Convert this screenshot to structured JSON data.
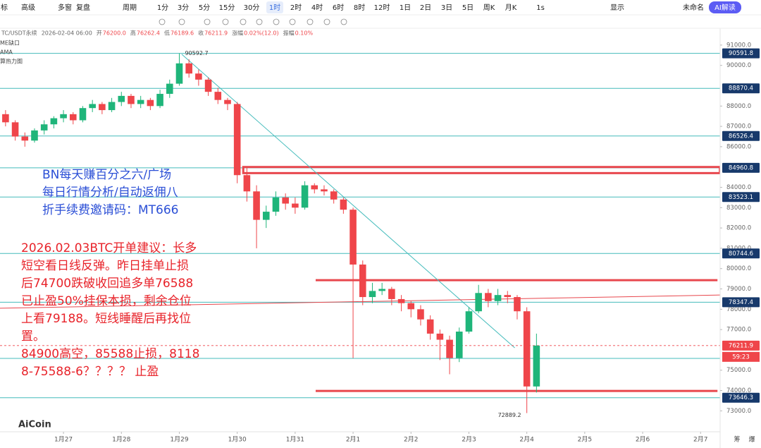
{
  "toolbar": {
    "left": [
      "标",
      "高级",
      "多窗",
      "复盘",
      "周期"
    ],
    "periods": [
      "1分",
      "3分",
      "5分",
      "15分",
      "30分",
      "1时",
      "2时",
      "4时",
      "6时",
      "8时",
      "12时",
      "1日",
      "2日",
      "3日",
      "5日",
      "周K",
      "月K"
    ],
    "active_period": 5,
    "right": [
      "1s",
      "显示",
      "未命名",
      "AI解读"
    ]
  },
  "infobar": [
    "TC/USDT永续",
    "2026-02-04 06:00",
    "开",
    "76200.0",
    "高",
    "76262.4",
    "低",
    "76189.6",
    "收",
    "76211.9",
    "涨幅",
    "0.02%(12.0)",
    "振幅",
    "0.10%"
  ],
  "indicators": [
    "ME缺口",
    "AMA",
    "算热力图"
  ],
  "watermark": "AiCoin",
  "footer_right": [
    "筹",
    "爆"
  ],
  "chart_data": {
    "type": "candlestick",
    "up_color": "#1fb57a",
    "down_color": "#ef454a",
    "x": [
      -24,
      -20,
      -16,
      -12,
      -8,
      -4,
      0,
      4,
      8,
      12,
      16,
      20,
      24,
      28,
      32,
      36,
      40,
      44,
      48,
      52,
      56,
      60,
      64,
      68,
      72,
      76,
      80,
      84,
      88,
      92,
      96,
      100,
      104,
      108,
      112,
      116,
      120,
      124,
      128,
      132,
      136,
      140,
      144,
      148,
      152,
      156,
      160,
      164,
      168,
      172,
      176,
      180,
      184,
      188,
      192,
      196
    ],
    "open": [
      87600,
      87200,
      86500,
      86300,
      86800,
      87100,
      87400,
      87600,
      87300,
      87900,
      88100,
      87800,
      88200,
      88500,
      88100,
      88300,
      88000,
      88600,
      89100,
      90100,
      89600,
      89300,
      88700,
      88300,
      88100,
      84600,
      83800,
      82400,
      82800,
      83500,
      83200,
      83000,
      84100,
      83900,
      83800,
      83400,
      82900,
      80200,
      78600,
      78900,
      79000,
      78500,
      78300,
      78000,
      77500,
      76800,
      76500,
      75600,
      76900,
      77900,
      78800,
      78400,
      78700,
      78600,
      77900,
      74200
    ],
    "high": [
      87800,
      87300,
      86700,
      86900,
      87300,
      87500,
      87800,
      87700,
      88000,
      88300,
      88200,
      88400,
      88700,
      88600,
      88500,
      88400,
      88800,
      89300,
      90592.7,
      90300,
      89800,
      89400,
      88900,
      88400,
      88200,
      85000,
      84100,
      83100,
      83800,
      83700,
      83500,
      84300,
      84200,
      84100,
      83900,
      83500,
      83000,
      80400,
      79300,
      79300,
      79100,
      78700,
      78400,
      78200,
      77700,
      77000,
      76700,
      77100,
      78100,
      79200,
      79000,
      79000,
      78900,
      78700,
      78100,
      76800
    ],
    "low": [
      87000,
      86300,
      86000,
      86200,
      86600,
      86900,
      87200,
      87100,
      87200,
      87700,
      87600,
      87700,
      88000,
      87900,
      87900,
      87800,
      87900,
      88400,
      89000,
      89400,
      89000,
      88500,
      88100,
      87800,
      84200,
      83300,
      81000,
      82000,
      82600,
      82900,
      82700,
      82900,
      83700,
      83600,
      83200,
      82700,
      75600,
      78200,
      78300,
      78700,
      78200,
      77900,
      77600,
      77200,
      76500,
      75500,
      74800,
      75400,
      76800,
      77800,
      78100,
      78200,
      78300,
      77500,
      72889.2,
      73900
    ],
    "close": [
      87200,
      86500,
      86300,
      86800,
      87100,
      87400,
      87600,
      87300,
      87900,
      88100,
      87800,
      88200,
      88500,
      88100,
      88300,
      88000,
      88600,
      89100,
      90100,
      89600,
      89300,
      88700,
      88300,
      88100,
      84600,
      83800,
      82400,
      82800,
      83500,
      83200,
      83000,
      84100,
      83900,
      83800,
      83400,
      82900,
      80200,
      78600,
      78900,
      79000,
      78500,
      78300,
      78000,
      77500,
      76800,
      76500,
      75600,
      76900,
      77900,
      78800,
      78400,
      78700,
      78600,
      77900,
      74200,
      76211.9
    ],
    "xlim": [
      -26.3,
      272.1
    ],
    "ylim": [
      71970,
      91830
    ],
    "xticks": [
      {
        "value": 0,
        "label": "1月27"
      },
      {
        "value": 24,
        "label": "1月28"
      },
      {
        "value": 48,
        "label": "1月29"
      },
      {
        "value": 72,
        "label": "1月30"
      },
      {
        "value": 96,
        "label": "1月31"
      },
      {
        "value": 120,
        "label": "2月1"
      },
      {
        "value": 144,
        "label": "2月2"
      },
      {
        "value": 168,
        "label": "2月3"
      },
      {
        "value": 192,
        "label": "2月4"
      },
      {
        "value": 216,
        "label": "2月5"
      },
      {
        "value": 240,
        "label": "2月6"
      },
      {
        "value": 264,
        "label": "2月7"
      }
    ],
    "yticks": [
      {
        "value": 91000,
        "label": "91000.0"
      },
      {
        "value": 90000,
        "label": "90000.0"
      },
      {
        "value": 88000,
        "label": "88000.0"
      },
      {
        "value": 87000,
        "label": "87000.0"
      },
      {
        "value": 86000,
        "label": "86000.0"
      },
      {
        "value": 84000,
        "label": "84000.0"
      },
      {
        "value": 83000,
        "label": "83000.0"
      },
      {
        "value": 82000,
        "label": "82000.0"
      },
      {
        "value": 81000,
        "label": "81000.0"
      },
      {
        "value": 80000,
        "label": "80000.0"
      },
      {
        "value": 79000,
        "label": "79000.0"
      },
      {
        "value": 78000,
        "label": "78000.0"
      },
      {
        "value": 77000,
        "label": "77000.0"
      },
      {
        "value": 75000,
        "label": "75000.0"
      },
      {
        "value": 74000,
        "label": "74000.0"
      },
      {
        "value": 73000,
        "label": "73000.0"
      }
    ],
    "levels": [
      90591.8,
      88870.4,
      86526.4,
      84960.8,
      83523.1,
      80744.6,
      78347.4,
      73646.3
    ],
    "level_color": "#45bcbc",
    "countdown": "59:23",
    "plain_lines": [
      75580
    ],
    "trend_lines": [
      {
        "color": "#45bcbc",
        "points": [
          [
            49,
            90550
          ],
          [
            187,
            76100
          ]
        ]
      },
      {
        "color": "#e8474d",
        "points": [
          [
            -26.3,
            78050
          ],
          [
            272.1,
            78700
          ]
        ]
      }
    ],
    "red_segments": [
      {
        "x": [
          104.5,
          271
        ],
        "y": 79430
      },
      {
        "x": [
          104.5,
          271
        ],
        "y": 73980
      }
    ],
    "red_box": {
      "x": [
        74.5,
        272
      ],
      "y": [
        84700,
        85000
      ]
    },
    "blue_note": [
      "BN每天赚百分之六/广场",
      "每日行情分析/自动返佣八",
      "折手续费邀请码：MT666"
    ],
    "red_note": [
      "2026.02.03BTC开单建议：长多",
      "短空看日线反弹。昨日挂单止损",
      "后74700跌破收回追多单76588",
      "已止盈50%挂保本损，剩余仓位",
      "上看79188。短线睡醒后再找位",
      "置。",
      "84900高空，85588止损，8118",
      "8-75588-6？？？？ 止盈"
    ]
  }
}
